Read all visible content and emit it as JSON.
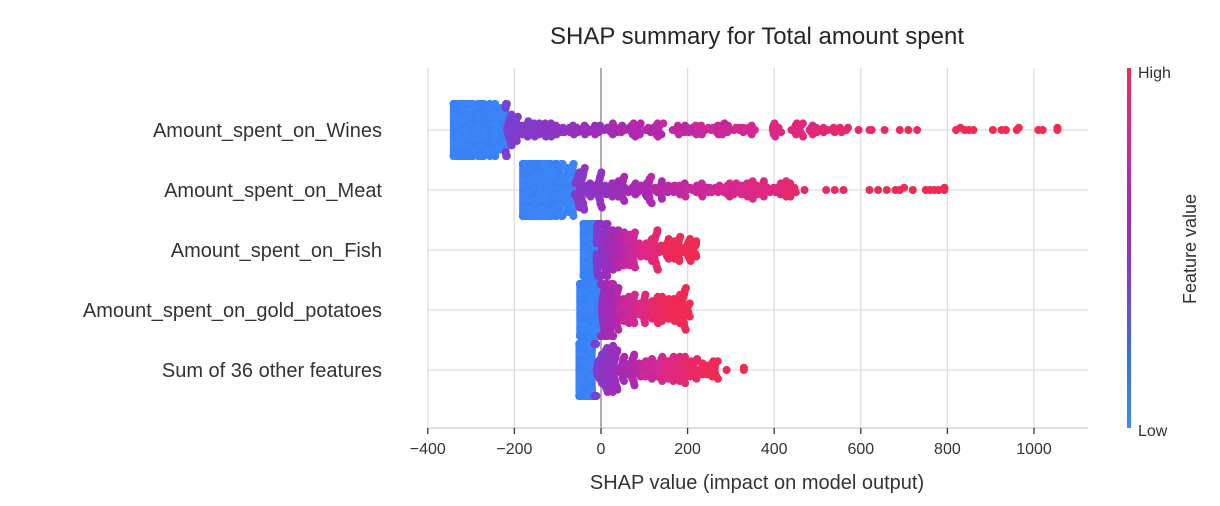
{
  "chart_data": {
    "type": "scatter",
    "subtype": "shap-beeswarm",
    "title": "SHAP summary for Total amount spent",
    "xlabel": "SHAP value (impact on model output)",
    "ylabel": "",
    "xlim": [
      -400,
      1130
    ],
    "xticks": [
      -400,
      -200,
      0,
      200,
      400,
      600,
      800,
      1000
    ],
    "xtick_labels": [
      "−400",
      "−200",
      "0",
      "200",
      "400",
      "600",
      "800",
      "1000"
    ],
    "grid": true,
    "colorbar": {
      "title": "Feature value",
      "high_label": "High",
      "low_label": "Low",
      "colors": [
        "#3b8bfb",
        "#3a6ce8",
        "#7a3fd0",
        "#a22ab6",
        "#d9278e",
        "#ef2a53"
      ]
    },
    "features": [
      {
        "name": "Amount_spent_on_Wines",
        "min": -340,
        "max": 1054,
        "mode": -325,
        "dense_until": -220,
        "sparse_outliers": [
          595,
          620,
          625,
          655,
          690,
          710,
          730,
          820,
          830,
          840,
          850,
          860,
          905,
          925,
          935,
          960,
          965,
          1010,
          1020,
          1054
        ]
      },
      {
        "name": "Amount_spent_on_Meat",
        "min": -180,
        "max": 793,
        "mode": -168,
        "dense_until": -60,
        "sparse_outliers": [
          450,
          470,
          520,
          540,
          560,
          620,
          640,
          660,
          680,
          690,
          700,
          720,
          750,
          760,
          770,
          780,
          793
        ]
      },
      {
        "name": "Amount_spent_on_Fish",
        "min": -40,
        "max": 220,
        "mode": -35,
        "dense_until": -10,
        "sparse_outliers": []
      },
      {
        "name": "Amount_spent_on_gold_potatoes",
        "min": -48,
        "max": 205,
        "mode": -40,
        "dense_until": 0,
        "sparse_outliers": [
          205
        ]
      },
      {
        "name": "Sum of 36 other features",
        "min": -50,
        "max": 330,
        "mode": -42,
        "dense_until": -15,
        "sparse_outliers": [
          270,
          290,
          330
        ]
      }
    ]
  }
}
